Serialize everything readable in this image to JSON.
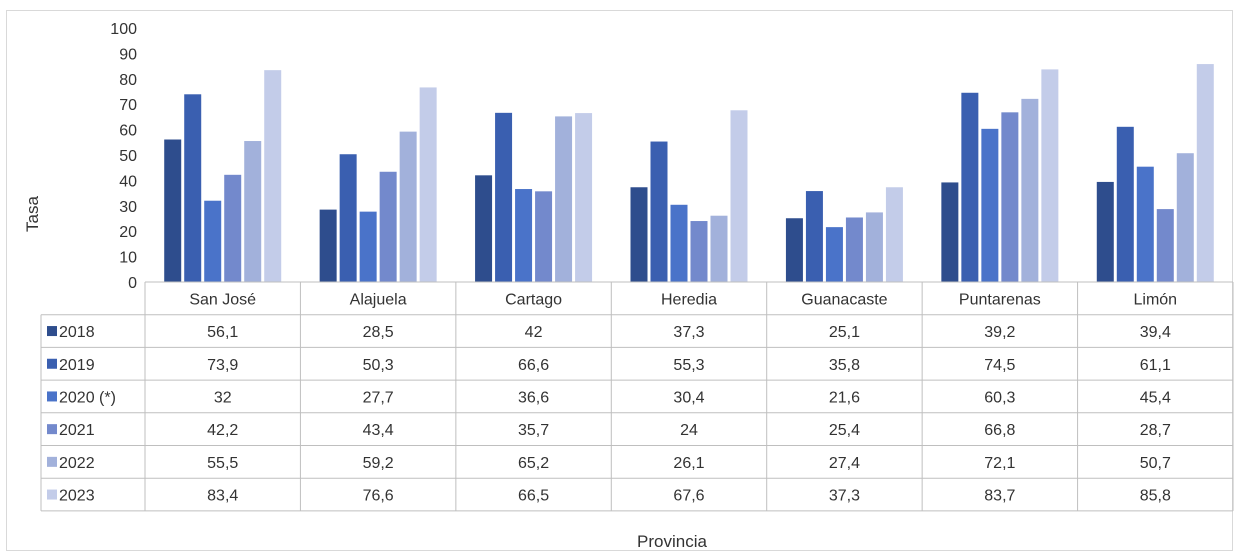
{
  "chart_data": {
    "type": "bar",
    "ylabel": "Tasa",
    "xlabel": "Provincia",
    "ylim": [
      0,
      100
    ],
    "yticks": [
      0,
      10,
      20,
      30,
      40,
      50,
      60,
      70,
      80,
      90,
      100
    ],
    "grid": false,
    "legend": "data-table",
    "categories": [
      "San José",
      "Alajuela",
      "Cartago",
      "Heredia",
      "Guanacaste",
      "Puntarenas",
      "Limón"
    ],
    "series": [
      {
        "name": "2018",
        "color": "#2e4d8d",
        "values": [
          56.1,
          28.5,
          42,
          37.3,
          25.1,
          39.2,
          39.4
        ],
        "labels": [
          "56,1",
          "28,5",
          "42",
          "37,3",
          "25,1",
          "39,2",
          "39,4"
        ]
      },
      {
        "name": "2019",
        "color": "#3a5fb0",
        "values": [
          73.9,
          50.3,
          66.6,
          55.3,
          35.8,
          74.5,
          61.1
        ],
        "labels": [
          "73,9",
          "50,3",
          "66,6",
          "55,3",
          "35,8",
          "74,5",
          "61,1"
        ]
      },
      {
        "name": "2020 (*)",
        "color": "#4a73c9",
        "values": [
          32,
          27.7,
          36.6,
          30.4,
          21.6,
          60.3,
          45.4
        ],
        "labels": [
          "32",
          "27,7",
          "36,6",
          "30,4",
          "21,6",
          "60,3",
          "45,4"
        ]
      },
      {
        "name": "2021",
        "color": "#7389cc",
        "values": [
          42.2,
          43.4,
          35.7,
          24,
          25.4,
          66.8,
          28.7
        ],
        "labels": [
          "42,2",
          "43,4",
          "35,7",
          "24",
          "25,4",
          "66,8",
          "28,7"
        ]
      },
      {
        "name": "2022",
        "color": "#a2b1db",
        "values": [
          55.5,
          59.2,
          65.2,
          26.1,
          27.4,
          72.1,
          50.7
        ],
        "labels": [
          "55,5",
          "59,2",
          "65,2",
          "26,1",
          "27,4",
          "72,1",
          "50,7"
        ]
      },
      {
        "name": "2023",
        "color": "#c3cce9",
        "values": [
          83.4,
          76.6,
          66.5,
          67.6,
          37.3,
          83.7,
          85.8
        ],
        "labels": [
          "83,4",
          "76,6",
          "66,5",
          "67,6",
          "37,3",
          "83,7",
          "85,8"
        ]
      }
    ]
  }
}
